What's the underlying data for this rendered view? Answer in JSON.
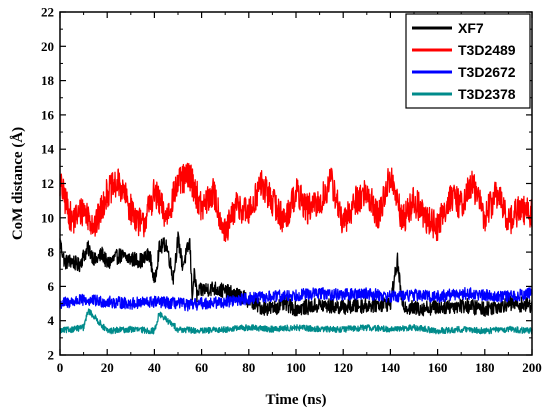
{
  "chart_data": {
    "type": "line",
    "title": "",
    "xlabel": "Time (ns)",
    "ylabel": "CoM distance (Å)",
    "xlim": [
      0,
      200
    ],
    "ylim": [
      2,
      22
    ],
    "xticks": [
      "0",
      "20",
      "40",
      "60",
      "80",
      "100",
      "120",
      "140",
      "160",
      "180",
      "200"
    ],
    "yticks": [
      "2",
      "4",
      "6",
      "8",
      "10",
      "12",
      "14",
      "16",
      "18",
      "20",
      "22"
    ],
    "grid": false,
    "legend_position": "top-right",
    "series": [
      {
        "name": "XF7",
        "color": "#000000",
        "x": [
          0,
          2,
          5,
          8,
          10,
          12,
          15,
          18,
          20,
          25,
          30,
          35,
          38,
          40,
          42,
          45,
          48,
          50,
          52,
          55,
          56,
          57,
          58,
          60,
          65,
          70,
          75,
          80,
          85,
          90,
          95,
          100,
          110,
          120,
          130,
          140,
          143,
          145,
          150,
          160,
          170,
          180,
          190,
          200
        ],
        "values": [
          8.6,
          7.4,
          7.5,
          7.2,
          7.8,
          8.2,
          7.5,
          7.9,
          7.3,
          7.8,
          7.6,
          7.5,
          7.9,
          6.2,
          8.2,
          8.5,
          6.5,
          8.8,
          7.2,
          8.6,
          5.5,
          6.8,
          5.5,
          5.8,
          5.9,
          5.7,
          5.5,
          5.2,
          4.8,
          4.7,
          5.0,
          4.7,
          4.9,
          4.8,
          4.9,
          5.0,
          7.5,
          4.9,
          4.7,
          4.8,
          4.9,
          4.7,
          5.0,
          4.9
        ]
      },
      {
        "name": "T3D2489",
        "color": "#ff0000",
        "x": [
          0,
          5,
          10,
          15,
          20,
          25,
          30,
          35,
          40,
          45,
          50,
          55,
          60,
          65,
          70,
          75,
          80,
          85,
          90,
          95,
          100,
          105,
          110,
          115,
          120,
          125,
          130,
          135,
          140,
          145,
          150,
          155,
          160,
          165,
          170,
          175,
          180,
          185,
          190,
          195,
          200
        ],
        "values": [
          12.0,
          9.8,
          10.5,
          9.5,
          11.5,
          12.0,
          10.5,
          9.5,
          11.5,
          10.0,
          12.0,
          12.5,
          10.5,
          11.5,
          9.0,
          10.8,
          10.2,
          12.0,
          11.0,
          9.8,
          11.5,
          10.5,
          10.8,
          12.2,
          9.5,
          11.0,
          11.5,
          10.0,
          12.5,
          9.8,
          11.0,
          10.0,
          9.5,
          11.2,
          10.8,
          12.0,
          10.0,
          11.5,
          9.8,
          10.5,
          10.2
        ]
      },
      {
        "name": "T3D2672",
        "color": "#0000ff",
        "x": [
          0,
          10,
          20,
          30,
          40,
          50,
          55,
          60,
          70,
          80,
          90,
          100,
          110,
          120,
          130,
          140,
          150,
          160,
          170,
          180,
          190,
          200
        ],
        "values": [
          5.0,
          5.2,
          5.1,
          5.0,
          5.1,
          5.0,
          4.9,
          5.0,
          5.1,
          5.3,
          5.4,
          5.5,
          5.6,
          5.5,
          5.6,
          5.4,
          5.5,
          5.4,
          5.6,
          5.5,
          5.4,
          5.6
        ]
      },
      {
        "name": "T3D2378",
        "color": "#008b8b",
        "x": [
          0,
          10,
          12,
          20,
          30,
          40,
          42,
          50,
          60,
          70,
          80,
          90,
          100,
          110,
          120,
          130,
          140,
          150,
          160,
          170,
          180,
          190,
          200
        ],
        "values": [
          3.4,
          3.6,
          4.6,
          3.4,
          3.5,
          3.4,
          4.4,
          3.5,
          3.4,
          3.5,
          3.6,
          3.5,
          3.6,
          3.5,
          3.5,
          3.6,
          3.5,
          3.6,
          3.4,
          3.5,
          3.4,
          3.5,
          3.4
        ]
      }
    ]
  }
}
